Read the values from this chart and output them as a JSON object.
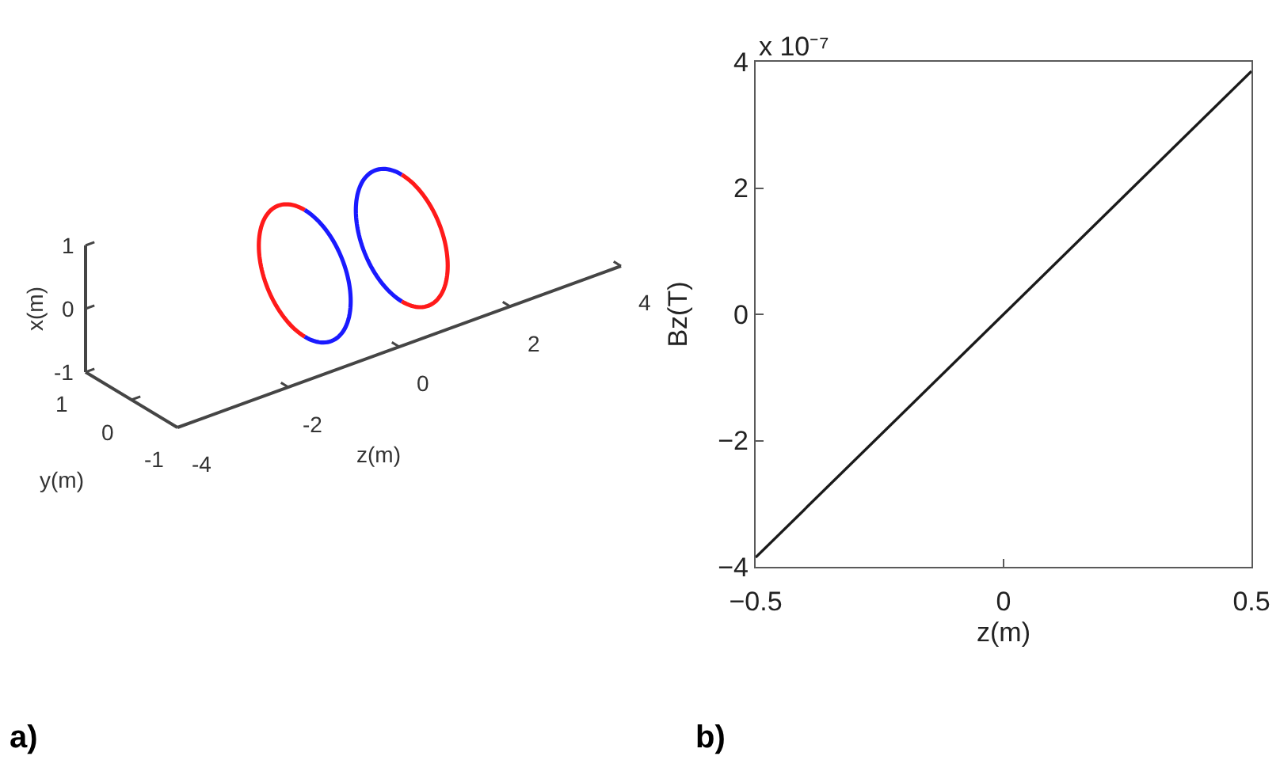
{
  "chart_data": [
    {
      "type": "other",
      "title": "a)",
      "xlabel": "z(m)",
      "ylabel": "x(m)",
      "x2label": "y(m)",
      "annotations": [
        "1",
        "0",
        "-1",
        "1",
        "0",
        "-1",
        "-4",
        "-2",
        "0",
        "2",
        "4"
      ]
    },
    {
      "type": "line",
      "title": "b)",
      "x": [
        -0.5,
        0,
        0.5
      ],
      "values": [
        -3.85,
        0,
        3.85
      ],
      "color": "#1a1a1a",
      "xlabel": "z(m)",
      "ylabel": "Bz(T)",
      "xlim": [
        -0.5,
        0.5
      ],
      "xticks": [
        {
          "value": -0.5,
          "label": "−0.5"
        },
        0,
        0.5
      ],
      "ylim": [
        -4,
        4
      ],
      "yticks": [
        {
          "value": -4,
          "label": "−4"
        },
        {
          "value": -2,
          "label": "−2"
        },
        0,
        2,
        4
      ],
      "annotations": [
        "x 10⁻⁷"
      ]
    }
  ]
}
